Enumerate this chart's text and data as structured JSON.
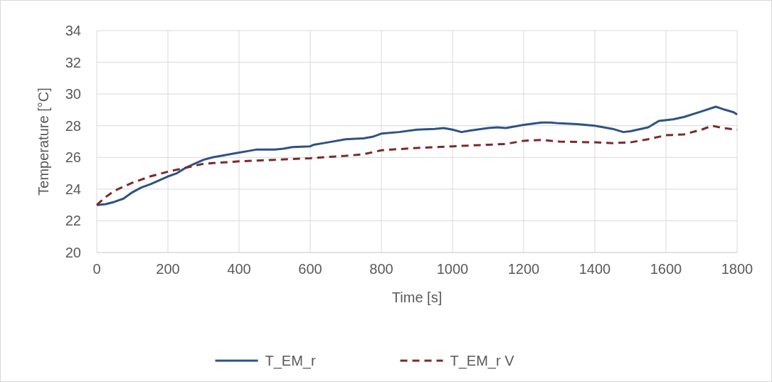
{
  "chart_data": {
    "type": "line",
    "xlabel": "Time [s]",
    "ylabel": "Temperature [°C]",
    "xlim": [
      0,
      1800
    ],
    "xticks": [
      0,
      200,
      400,
      600,
      800,
      1000,
      1200,
      1400,
      1600,
      1800
    ],
    "ylim": [
      20,
      34
    ],
    "yticks": [
      20,
      22,
      24,
      26,
      28,
      30,
      32,
      34
    ],
    "grid": true,
    "legend": "bottom",
    "series": [
      {
        "name": "T_EM_r",
        "color": "#2e5384",
        "line_style": "solid",
        "x": [
          0,
          25,
          50,
          75,
          100,
          125,
          150,
          175,
          200,
          225,
          250,
          275,
          300,
          325,
          350,
          375,
          400,
          425,
          450,
          500,
          525,
          550,
          600,
          610,
          650,
          700,
          750,
          775,
          800,
          850,
          900,
          950,
          975,
          1000,
          1025,
          1050,
          1100,
          1125,
          1150,
          1200,
          1250,
          1275,
          1300,
          1350,
          1400,
          1450,
          1480,
          1500,
          1550,
          1580,
          1620,
          1650,
          1700,
          1740,
          1760,
          1790,
          1800
        ],
        "values": [
          23.0,
          23.05,
          23.2,
          23.4,
          23.8,
          24.1,
          24.3,
          24.55,
          24.8,
          25.0,
          25.35,
          25.6,
          25.85,
          26.0,
          26.1,
          26.2,
          26.3,
          26.4,
          26.5,
          26.5,
          26.55,
          26.65,
          26.7,
          26.8,
          26.95,
          27.15,
          27.2,
          27.3,
          27.5,
          27.6,
          27.75,
          27.8,
          27.85,
          27.75,
          27.6,
          27.7,
          27.85,
          27.9,
          27.85,
          28.05,
          28.2,
          28.2,
          28.15,
          28.1,
          28.0,
          27.8,
          27.6,
          27.65,
          27.9,
          28.3,
          28.4,
          28.55,
          28.9,
          29.2,
          29.05,
          28.85,
          28.7
        ]
      },
      {
        "name": "T_EM_r V",
        "color": "#7b2a2a",
        "line_style": "dashed",
        "x": [
          0,
          25,
          50,
          100,
          150,
          200,
          250,
          300,
          400,
          500,
          600,
          700,
          750,
          800,
          900,
          1000,
          1050,
          1100,
          1150,
          1200,
          1250,
          1300,
          1400,
          1450,
          1500,
          1550,
          1600,
          1650,
          1700,
          1730,
          1760,
          1800
        ],
        "values": [
          23.0,
          23.5,
          23.9,
          24.4,
          24.8,
          25.1,
          25.35,
          25.6,
          25.75,
          25.85,
          25.95,
          26.1,
          26.2,
          26.45,
          26.6,
          26.7,
          26.75,
          26.8,
          26.85,
          27.05,
          27.1,
          27.0,
          26.95,
          26.9,
          26.95,
          27.15,
          27.4,
          27.45,
          27.75,
          28.0,
          27.85,
          27.75
        ]
      }
    ]
  }
}
